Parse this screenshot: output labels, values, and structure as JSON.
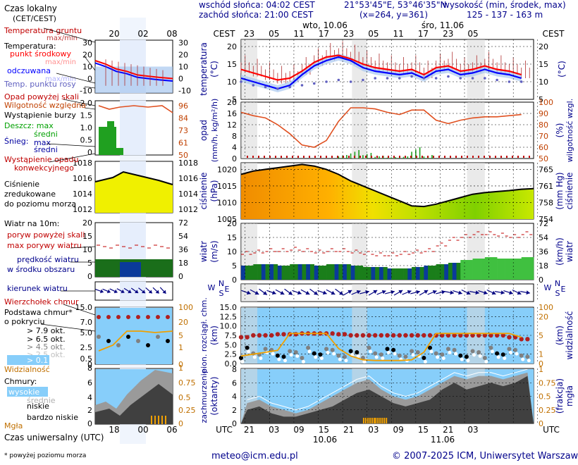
{
  "header": {
    "sunrise": "wschód słońca: 04:02 CEST",
    "sunset": "zachód słońca: 21:00 CEST",
    "coords": "21°53'45\"E, 53°46'35\"N",
    "grid": "(x=264,  y=361)",
    "elevation_label": "wysokość (min, środek, max)",
    "elevation_values": "125 - 137 - 163 m"
  },
  "footer": {
    "email": "meteo@icm.edu.pl",
    "copyright": "© 2007-2025 ICM, Uniwersytet Warszawski",
    "footnote": "* powyżej poziomu morza",
    "utc_label": "Czas uniwersalny (UTC)"
  },
  "legend": {
    "czas": "Czas lokalny",
    "czas2": "(CET/CEST)",
    "temp_gruntu": "Temperatura gruntu",
    "temp_maxmin": "max/min",
    "temperatura": "Temperatura:",
    "punkt": "punkt środkowy",
    "punkt_maxmin": "max/min",
    "odczuwana": "odczuwana",
    "odczuwana_maxmin": "max/min",
    "rosy": "Temp. punktu rosy",
    "opad_skala": "Opad powyżej skali",
    "wilgotnosc": "Wilgotność względna",
    "burza": "Wystąpienie burzy",
    "deszcz": "Deszcz: max",
    "deszcz_sr": "średni",
    "snieg": "Śnieg:",
    "snieg_max": "max",
    "snieg_sr": "średni",
    "konw1": "Wystąpienie opadu",
    "konw2": "konwekcyjnego",
    "cisn1": "Ciśnienie",
    "cisn2": "zredukowane",
    "cisn3": "do poziomu morza",
    "wiatr": "Wiatr na 10m:",
    "poryw_skala": "poryw powyżej skali",
    "poryw_max": "max porywy wiatru",
    "predkosc1": "prędkość wiatru",
    "predkosc2": "w środku obszaru",
    "kierunek": "kierunek wiatru",
    "wierzcholek": "Wierzchołek chmur",
    "podstawa1": "Podstawa chmur*",
    "podstawa2": "o pokryciu",
    "okt1": "> 7.9 okt.",
    "okt2": "> 6.5 okt.",
    "okt3": "> 4.5 okt.",
    "okt4": "> 2.5 okt.",
    "okt5": "> 0.1 okt.",
    "widzialnosc": "Widzialność",
    "chmury": "Chmury:",
    "wysokie": "wysokie",
    "srednie": "średnie",
    "niskie": "niskie",
    "bardzo_niskie": "bardzo niskie",
    "mgla": "Mgła"
  },
  "mini_axis": {
    "top_ticks": [
      "20",
      "02",
      "08"
    ],
    "bottom_ticks": [
      "18",
      "00",
      "06"
    ],
    "temp_left": [
      "30",
      "20",
      "10",
      "0",
      "-10"
    ],
    "temp_right": [
      "30",
      "20",
      "10",
      "0",
      "-10"
    ],
    "rain_left": [
      "2.0",
      "1.5",
      "1.0",
      "0.5",
      "0"
    ],
    "rh_right": [
      "96",
      "84",
      "73",
      "61",
      "50"
    ],
    "press_left": [
      "1018",
      "1016",
      "1014",
      "1012"
    ],
    "press_right": [
      "1018",
      "1016",
      "1014",
      "1012"
    ],
    "wind_left": [
      "20",
      "15",
      "10",
      "5",
      "0"
    ],
    "wind_right": [
      "72",
      "54",
      "36",
      "18",
      "0"
    ],
    "cb_left": [
      "15.0",
      "7.0",
      "5.0",
      "2.5",
      "0.5",
      "0"
    ],
    "vis_right": [
      "100",
      "20",
      "5",
      "1",
      "0"
    ],
    "cl_left": [
      "8",
      "6",
      "4",
      "2",
      "0"
    ],
    "fog_right": [
      "1",
      "0.75",
      "0.5",
      "0.25",
      "0"
    ]
  },
  "main_axis": {
    "cest": "CEST",
    "utc": "UTC",
    "top_hours": [
      "23",
      "05",
      "11",
      "17",
      "23",
      "05",
      "11",
      "17",
      "23",
      "05"
    ],
    "bottom_hours": [
      "21",
      "03",
      "09",
      "15",
      "21",
      "03",
      "09",
      "15",
      "21",
      "03"
    ],
    "day1_top": "wto, 10.06",
    "day2_top": "śro, 11.06",
    "day1_bottom": "10.06",
    "day2_bottom": "11.06",
    "t_ticks": [
      "20",
      "15",
      "10",
      "5"
    ],
    "r_ticks": [
      "20",
      "16",
      "12",
      "8",
      "4",
      "0"
    ],
    "h_ticks": [
      "100",
      "90",
      "80",
      "70",
      "60",
      "50"
    ],
    "p_ticks": [
      "1020",
      "1015",
      "1010",
      "1005"
    ],
    "mmhg_ticks": [
      "765",
      "761",
      "758",
      "754"
    ],
    "w_ticks": [
      "20",
      "15",
      "10",
      "5",
      "0"
    ],
    "kmh_ticks": [
      "72",
      "54",
      "36",
      "18",
      "0"
    ],
    "cb_ticks": [
      "15.0",
      "12.5",
      "10.0",
      "7.5",
      "5.0",
      "2.5",
      "0.0"
    ],
    "vis_ticks": [
      "100",
      "20",
      "5",
      "1",
      "0"
    ],
    "cl_ticks": [
      "8",
      "6",
      "4",
      "2",
      "0"
    ],
    "fog_ticks": [
      "1",
      "0.75",
      "0.5",
      "0.25",
      "0"
    ],
    "lab_temp": "temperatura",
    "lab_temp_u": "(°C)",
    "lab_rain": "opad",
    "lab_rain_u": "(mm/h, kg/m²/h)",
    "lab_rh": "wilgotność wzgl.",
    "lab_rh_u": "(%)",
    "lab_p": "ciśnienie",
    "lab_p_u": "(hPa)",
    "lab_mmhg_u": "(mm Hg)",
    "lab_w": "wiatr",
    "lab_w_u": "(m/s)",
    "lab_kmh_u": "(km/h)",
    "lab_cb": "pion. rozciągł. chm.",
    "lab_cb_u": "(km)",
    "lab_vis": "widzialność",
    "lab_vis_u": "(km)",
    "lab_cl": "zachmurzenie",
    "lab_cl_u": "(oktanty)",
    "lab_fog": "mgła",
    "lab_fog_u": "(frakcja)",
    "compass_w": "W",
    "compass_n": "N",
    "compass_s": "S",
    "compass_e": "E"
  },
  "chart_data": [
    {
      "type": "line",
      "name": "temperature",
      "x_hours": [
        0,
        3,
        6,
        9,
        12,
        15,
        18,
        21,
        24,
        27,
        30,
        33,
        36,
        39,
        42,
        45,
        48,
        51,
        54,
        57,
        60,
        63,
        66,
        69
      ],
      "series": [
        {
          "name": "punkt środkowy",
          "color": "#ff0000",
          "values": [
            13.5,
            12.5,
            11.5,
            10.5,
            11,
            13,
            15.5,
            17,
            17.5,
            16.5,
            15,
            14,
            13.5,
            13,
            13.5,
            12,
            14,
            14.5,
            13,
            13.5,
            14.5,
            13.5,
            13,
            12
          ]
        },
        {
          "name": "odczuwana",
          "color": "#0000ff",
          "values": [
            11,
            10,
            9,
            8,
            9,
            12,
            14.5,
            16,
            17,
            16,
            14,
            13,
            12.5,
            12,
            12.5,
            11,
            13,
            13.5,
            12,
            12.5,
            13.5,
            12.5,
            12,
            11
          ]
        },
        {
          "name": "Temp. punktu rosy",
          "color": "#6060c0",
          "values": [
            10,
            9,
            8.5,
            8,
            8.5,
            9,
            9.5,
            10,
            10.5,
            10,
            10.5,
            11,
            11,
            11,
            11.5,
            11,
            11,
            11.5,
            11,
            11,
            11,
            10.5,
            10,
            10
          ]
        }
      ],
      "ylim": [
        5,
        22
      ]
    },
    {
      "type": "bar",
      "name": "rain_humidity",
      "x_hours": [
        0,
        3,
        6,
        9,
        12,
        15,
        18,
        21,
        24,
        27,
        30,
        33,
        36,
        39,
        42,
        45,
        48,
        51,
        54,
        57,
        60,
        63,
        66,
        69
      ],
      "series": [
        {
          "name": "Wilgotność względna",
          "values": [
            91,
            88,
            86,
            80,
            72,
            62,
            60,
            66,
            83,
            95,
            95,
            94,
            91,
            89,
            93,
            93,
            84,
            81,
            84,
            86,
            87,
            87,
            88,
            89
          ]
        },
        {
          "name": "Deszcz: max",
          "values": [
            0,
            0,
            0,
            0,
            0,
            0,
            0,
            0,
            0.5,
            1.2,
            0.8,
            0.4,
            0.2,
            0.3,
            1.6,
            0.5,
            0,
            0,
            0,
            0,
            0,
            0,
            0,
            0
          ]
        }
      ],
      "ylim": [
        0,
        20
      ]
    },
    {
      "type": "area",
      "name": "pressure",
      "x_hours": [
        0,
        3,
        6,
        9,
        12,
        15,
        18,
        21,
        24,
        27,
        30,
        33,
        36,
        39,
        42,
        45,
        48,
        51,
        54,
        57,
        60,
        63,
        66,
        69
      ],
      "series": [
        {
          "name": "Ciśnienie",
          "values": [
            1018.5,
            1019.5,
            1020,
            1020.5,
            1021,
            1021.5,
            1021,
            1020,
            1018.5,
            1016.5,
            1015,
            1013.5,
            1012,
            1010.5,
            1009,
            1008.8,
            1009.5,
            1010.5,
            1011.5,
            1012.5,
            1013,
            1013.3,
            1013.6,
            1014
          ]
        }
      ],
      "ylim": [
        1005,
        1022
      ]
    },
    {
      "type": "line",
      "name": "wind",
      "x_hours": [
        0,
        3,
        6,
        9,
        12,
        15,
        18,
        21,
        24,
        27,
        30,
        33,
        36,
        39,
        42,
        45,
        48,
        51,
        54,
        57,
        60,
        63,
        66,
        69
      ],
      "series": [
        {
          "name": "prędkość wiatru",
          "values": [
            5,
            5.5,
            5.5,
            5,
            5.5,
            5.5,
            5,
            5.5,
            5.5,
            5,
            4.5,
            4.5,
            4,
            4,
            4.5,
            5,
            5.5,
            6,
            7,
            7.5,
            8,
            7.5,
            7.5,
            8
          ]
        },
        {
          "name": "max porywy wiatru",
          "values": [
            9,
            9.5,
            10,
            10,
            10.5,
            10,
            9.5,
            10,
            10,
            9.5,
            9,
            8.5,
            8.5,
            9,
            9.5,
            10,
            12,
            14,
            15,
            16,
            16,
            15.5,
            15,
            16
          ]
        }
      ],
      "ylim": [
        0,
        20
      ]
    },
    {
      "type": "scatter",
      "name": "cloud_base_visibility",
      "x_hours": [
        0,
        3,
        6,
        9,
        12,
        15,
        18,
        21,
        24,
        27,
        30,
        33,
        36,
        39,
        42,
        45,
        48,
        51,
        54,
        57,
        60,
        63,
        66,
        69
      ],
      "series": [
        {
          "name": "Wierzchołek chmur",
          "values": [
            7,
            7.5,
            7.5,
            7.8,
            7.8,
            8,
            8,
            8,
            7.8,
            7.5,
            7.5,
            7.5,
            7.5,
            7.5,
            7.5,
            7.5,
            7.5,
            7.5,
            7.5,
            7.5,
            7.5,
            7.5,
            7,
            6.5
          ]
        },
        {
          "name": "Widzialność",
          "values": [
            2,
            2.5,
            3,
            3.5,
            8,
            8,
            8,
            8,
            4,
            2,
            1,
            0.8,
            0.8,
            0.8,
            1,
            3,
            8,
            8,
            8,
            8,
            8,
            8,
            8,
            7
          ]
        }
      ],
      "ylim": [
        0,
        15
      ]
    },
    {
      "type": "area",
      "name": "cloud_cover",
      "x_hours": [
        0,
        3,
        6,
        9,
        12,
        15,
        18,
        21,
        24,
        27,
        30,
        33,
        36,
        39,
        42,
        45,
        48,
        51,
        54,
        57,
        60,
        63,
        66,
        69
      ],
      "series": [
        {
          "name": "niskie",
          "values": [
            2,
            2.5,
            1.5,
            1,
            1,
            1.5,
            2,
            2.5,
            3.5,
            4.5,
            5,
            4,
            3,
            2.5,
            3,
            3.5,
            5,
            6,
            5,
            5.5,
            6,
            5.5,
            6,
            7
          ]
        },
        {
          "name": "średnie",
          "values": [
            3,
            3.5,
            2.5,
            2,
            1.5,
            2,
            3,
            4,
            5,
            6,
            6.5,
            5,
            4,
            3.5,
            4,
            5,
            6,
            7,
            6.5,
            7,
            7,
            6.5,
            7,
            7.5
          ]
        },
        {
          "name": "Mgła",
          "values": [
            0,
            0,
            0,
            0,
            0,
            0,
            0,
            0,
            0,
            0,
            0.1,
            0.1,
            0,
            0,
            0,
            0,
            0,
            0,
            0,
            0,
            0,
            0,
            0,
            0
          ]
        }
      ],
      "ylim": [
        0,
        8
      ]
    }
  ]
}
